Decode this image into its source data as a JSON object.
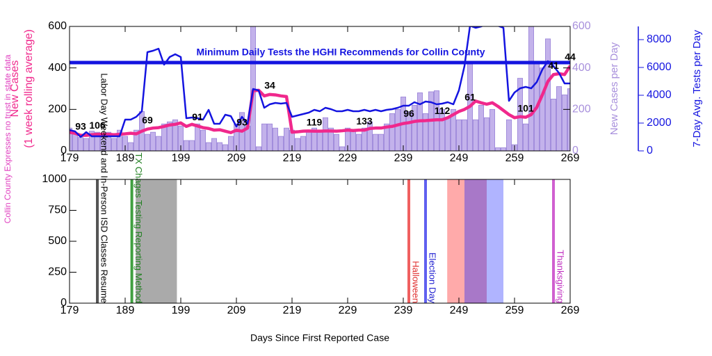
{
  "chart_data": [
    {
      "type": "combo",
      "x": [
        179,
        180,
        181,
        182,
        183,
        184,
        185,
        186,
        187,
        188,
        189,
        190,
        191,
        192,
        193,
        194,
        195,
        196,
        197,
        198,
        199,
        200,
        201,
        202,
        203,
        204,
        205,
        206,
        207,
        208,
        209,
        210,
        211,
        212,
        213,
        214,
        215,
        216,
        217,
        218,
        219,
        220,
        221,
        222,
        223,
        224,
        225,
        226,
        227,
        228,
        229,
        230,
        231,
        232,
        233,
        234,
        235,
        236,
        237,
        238,
        239,
        240,
        241,
        242,
        243,
        244,
        245,
        246,
        247,
        248,
        249,
        250,
        251,
        252,
        253,
        254,
        255,
        256,
        257,
        258,
        259,
        260,
        261,
        262,
        263,
        264,
        265,
        266,
        267,
        268,
        269
      ],
      "xlim": [
        179,
        269
      ],
      "xticks": [
        179,
        189,
        199,
        209,
        219,
        229,
        239,
        249,
        259,
        269
      ],
      "ylim": [
        0,
        600
      ],
      "yticks": [
        0,
        200,
        400,
        600
      ],
      "ylabel": [
        "New Cases",
        "(1 week rolling average)"
      ],
      "ylabel_color": "#f0288c",
      "y2lim": [
        0,
        600
      ],
      "y2ticks": [
        0,
        200,
        400,
        600
      ],
      "y2label": "New Cases per Day",
      "y2_color": "#a890dc",
      "y3lim": [
        0,
        8950
      ],
      "y3ticks": [
        0,
        2000,
        4000,
        6000,
        8000
      ],
      "y3label": "7-Day Avg. Tests per Day",
      "y3_color": "#1414e0",
      "series": [
        {
          "type": "bar",
          "axis": "y2",
          "color": "#b8a4e8",
          "values": [
            110,
            80,
            65,
            60,
            95,
            90,
            75,
            90,
            60,
            100,
            70,
            40,
            100,
            190,
            80,
            90,
            70,
            130,
            140,
            150,
            120,
            50,
            50,
            130,
            100,
            40,
            60,
            40,
            30,
            70,
            130,
            185,
            120,
            640,
            20,
            130,
            130,
            110,
            70,
            110,
            100,
            60,
            70,
            100,
            110,
            100,
            160,
            110,
            80,
            20,
            110,
            100,
            80,
            110,
            140,
            80,
            80,
            130,
            180,
            200,
            260,
            190,
            220,
            280,
            180,
            285,
            290,
            200,
            160,
            200,
            150,
            150,
            420,
            150,
            220,
            160,
            200,
            15,
            15,
            150,
            30,
            350,
            130,
            640,
            420,
            400,
            540,
            250,
            310,
            270,
            300
          ]
        },
        {
          "type": "line",
          "color": "#f0288c",
          "values": [
            90,
            85,
            75,
            75,
            78,
            80,
            80,
            80,
            78,
            80,
            82,
            85,
            82,
            95,
            105,
            110,
            112,
            118,
            125,
            128,
            135,
            118,
            128,
            120,
            112,
            108,
            100,
            102,
            95,
            88,
            100,
            95,
            110,
            290,
            292,
            265,
            272,
            270,
            265,
            262,
            90,
            92,
            95,
            96,
            95,
            95,
            96,
            96,
            95,
            97,
            100,
            98,
            100,
            100,
            108,
            110,
            110,
            115,
            118,
            125,
            132,
            136,
            142,
            145,
            146,
            148,
            150,
            150,
            160,
            175,
            190,
            200,
            215,
            240,
            232,
            225,
            232,
            215,
            195,
            175,
            160,
            165,
            162,
            175,
            210,
            270,
            335,
            368,
            372,
            368,
            410
          ]
        },
        {
          "type": "line",
          "axis": "y3",
          "color": "#1414e0",
          "values": [
            1500,
            1400,
            1000,
            1350,
            1050,
            1050,
            1050,
            1050,
            1050,
            1050,
            2250,
            2250,
            2450,
            2850,
            7100,
            7200,
            7350,
            6200,
            6750,
            6950,
            6750,
            2350,
            2400,
            2350,
            2250,
            2950,
            1950,
            1950,
            2600,
            2500,
            1750,
            2450,
            1950,
            4450,
            4350,
            3100,
            3350,
            3450,
            3400,
            3450,
            2450,
            2550,
            2650,
            2750,
            2950,
            2850,
            3100,
            3000,
            2850,
            2850,
            2950,
            2850,
            2850,
            2950,
            2850,
            2950,
            2850,
            2950,
            3000,
            3100,
            3250,
            3250,
            3500,
            3350,
            3550,
            3500,
            3350,
            3400,
            3500,
            3350,
            4350,
            6100,
            9000,
            8850,
            8950,
            9100,
            9300,
            9000,
            8850,
            3600,
            4200,
            4500,
            4600,
            4500,
            4950,
            5850,
            6450,
            6100,
            5600,
            4850,
            4850
          ]
        }
      ],
      "reference_line": {
        "axis": "y3",
        "value": 6350,
        "color": "#1414e0",
        "label": "Minimum Daily Tests the HGHI Recommends for Collin County"
      },
      "annotations": [
        {
          "x": 181,
          "text": "93"
        },
        {
          "x": 184,
          "text": "106"
        },
        {
          "x": 193,
          "text": "69"
        },
        {
          "x": 202,
          "text": "91"
        },
        {
          "x": 210,
          "text": "93"
        },
        {
          "x": 215,
          "text": "34"
        },
        {
          "x": 223,
          "text": "119"
        },
        {
          "x": 232,
          "text": "133"
        },
        {
          "x": 240,
          "text": "96"
        },
        {
          "x": 246,
          "text": "112"
        },
        {
          "x": 251,
          "text": "61"
        },
        {
          "x": 261,
          "text": "101"
        },
        {
          "x": 266,
          "text": "41"
        },
        {
          "x": 269,
          "text": "44"
        }
      ]
    },
    {
      "type": "timeline",
      "xlim": [
        179,
        269
      ],
      "xticks": [
        179,
        189,
        199,
        209,
        219,
        229,
        239,
        249,
        259,
        269
      ],
      "ylim": [
        0,
        1000
      ],
      "yticks": [
        0,
        250,
        500,
        750,
        1000
      ],
      "xlabel": "Days Since First Reported Case",
      "ylabel": "Collin County Expresses no trust in state data",
      "ylabel_color": "#e040c0",
      "spans": [
        {
          "x": [
            190.9,
            198.3
          ],
          "color": "#aaaaaa"
        },
        {
          "x": [
            246.9,
            250
          ],
          "color": "#ffaaaa"
        },
        {
          "x": [
            250,
            254
          ],
          "color": "#a878c8"
        },
        {
          "x": [
            254,
            257
          ],
          "color": "#b0b4ff"
        }
      ],
      "events": [
        {
          "x": 184,
          "label": "Labor Day Weekend and In-Person ISD Classes Resume",
          "color": "#555555",
          "text_color": "#000000"
        },
        {
          "x": 190.2,
          "label": "TX Chages Testing Reporting Method",
          "color": "#40a040",
          "text_color": "#208020"
        },
        {
          "x": 240,
          "label": "Halloween",
          "color": "#f06060",
          "text_color": "#e03030"
        },
        {
          "x": 243,
          "label": "Election Day",
          "color": "#6060f0",
          "text_color": "#2020d0"
        },
        {
          "x": 266,
          "label": "Thanksgiving",
          "color": "#d060d0",
          "text_color": "#c030c0"
        }
      ]
    }
  ]
}
